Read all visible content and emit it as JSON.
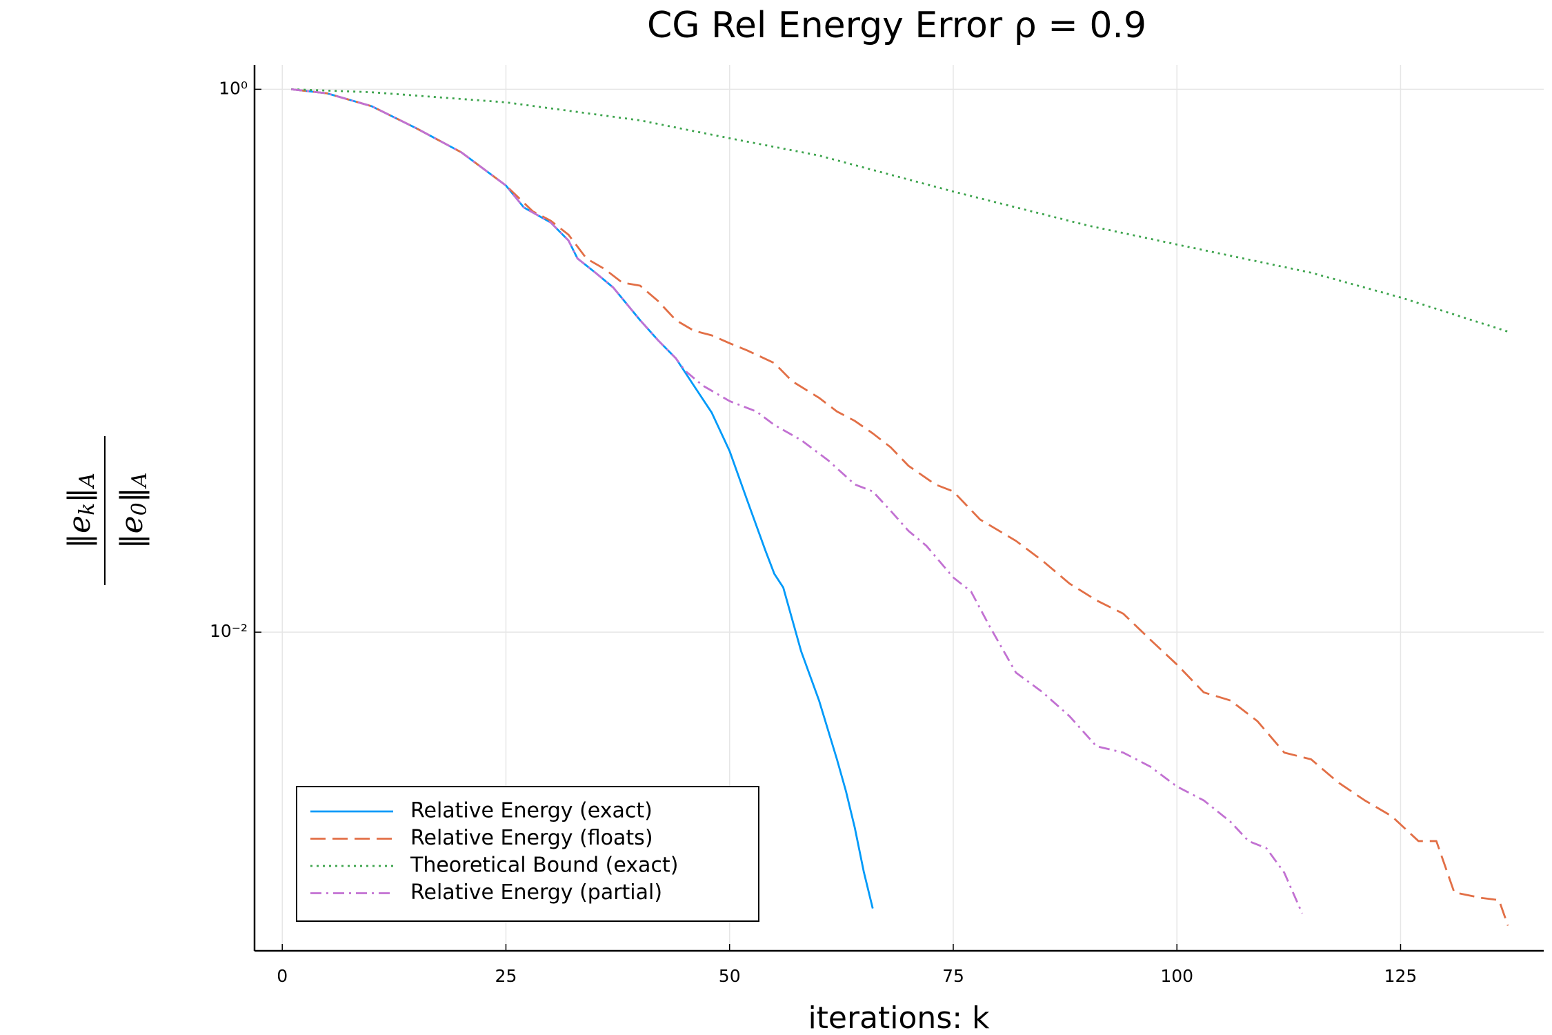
{
  "chart_data": {
    "type": "line",
    "title": "CG Rel Energy Error ρ = 0.9",
    "xlabel": "iterations: k",
    "ylabel": {
      "numerator": [
        "‖e",
        "k",
        "‖",
        "A"
      ],
      "denominator": [
        "‖e",
        "0",
        "‖",
        "A"
      ]
    },
    "xlim": [
      -3.1,
      141
    ],
    "xticks": [
      0,
      25,
      50,
      75,
      100,
      125
    ],
    "ylim": [
      0.00067,
      1.23
    ],
    "log_y": true,
    "yticks": [
      {
        "value": 1,
        "label": "10⁰"
      },
      {
        "value": 0.01,
        "label": "10⁻²"
      }
    ],
    "grid": true,
    "legend": "bottom-left",
    "series": [
      {
        "name": "Relative Energy (exact)",
        "color": "#009af9",
        "dash": "solid",
        "x": [
          1,
          5,
          10,
          15,
          20,
          25,
          27,
          30,
          32,
          33,
          35,
          37,
          40,
          42,
          44,
          46,
          48,
          50,
          52,
          54,
          55,
          56,
          58,
          60,
          62,
          63,
          64,
          65,
          66
        ],
        "values": [
          1,
          0.966,
          0.866,
          0.718,
          0.586,
          0.442,
          0.367,
          0.323,
          0.277,
          0.238,
          0.211,
          0.186,
          0.141,
          0.119,
          0.102,
          0.081,
          0.0644,
          0.0465,
          0.0304,
          0.02,
          0.0164,
          0.0146,
          0.0085,
          0.0056,
          0.0034,
          0.0026,
          0.0019,
          0.00131,
          0.00096
        ]
      },
      {
        "name": "Relative Energy (floats)",
        "color": "#e26f46",
        "dash": "dashed",
        "x": [
          1,
          5,
          10,
          15,
          20,
          25,
          28,
          30,
          32,
          34,
          36,
          38,
          40,
          42,
          44,
          46,
          48,
          50,
          52,
          55,
          57,
          60,
          62,
          64,
          66,
          68,
          70,
          73,
          75,
          78,
          82,
          85,
          88,
          91,
          94,
          97,
          100,
          103,
          106,
          109,
          112,
          115,
          118,
          121,
          124,
          127,
          129,
          131,
          134,
          136,
          137
        ],
        "values": [
          1,
          0.966,
          0.866,
          0.718,
          0.586,
          0.442,
          0.355,
          0.328,
          0.291,
          0.238,
          0.218,
          0.194,
          0.189,
          0.166,
          0.141,
          0.129,
          0.124,
          0.116,
          0.109,
          0.098,
          0.084,
          0.073,
          0.065,
          0.06,
          0.054,
          0.048,
          0.041,
          0.035,
          0.033,
          0.026,
          0.0217,
          0.0183,
          0.0151,
          0.0131,
          0.0117,
          0.0094,
          0.0076,
          0.006,
          0.0056,
          0.0047,
          0.0036,
          0.0034,
          0.0028,
          0.0024,
          0.0021,
          0.0017,
          0.0017,
          0.0011,
          0.00105,
          0.00103,
          0.00083
        ]
      },
      {
        "name": "Theoretical Bound (exact)",
        "color": "#3da44d",
        "dash": "dotted",
        "x": [
          1,
          10,
          25,
          40,
          50,
          60,
          75,
          90,
          100,
          115,
          125,
          137
        ],
        "values": [
          1,
          0.975,
          0.895,
          0.768,
          0.66,
          0.57,
          0.42,
          0.315,
          0.268,
          0.211,
          0.171,
          0.128
        ]
      },
      {
        "name": "Relative Energy (partial)",
        "color": "#c271d2",
        "dash": "dashdot",
        "x": [
          1,
          5,
          10,
          15,
          20,
          25,
          27,
          30,
          32,
          33,
          35,
          37,
          40,
          42,
          44,
          45,
          47,
          50,
          53,
          55,
          58,
          61,
          64,
          66,
          68,
          70,
          72,
          75,
          77,
          79,
          82,
          85,
          88,
          91,
          94,
          97,
          100,
          103,
          106,
          108,
          110,
          112,
          114
        ],
        "values": [
          1,
          0.966,
          0.866,
          0.718,
          0.586,
          0.442,
          0.367,
          0.323,
          0.277,
          0.238,
          0.211,
          0.186,
          0.141,
          0.119,
          0.102,
          0.092,
          0.081,
          0.071,
          0.065,
          0.058,
          0.051,
          0.043,
          0.035,
          0.033,
          0.028,
          0.0236,
          0.0208,
          0.0159,
          0.0141,
          0.0106,
          0.0071,
          0.006,
          0.0049,
          0.0038,
          0.0036,
          0.0032,
          0.0027,
          0.0024,
          0.002,
          0.0017,
          0.0016,
          0.0013,
          0.00092
        ]
      }
    ]
  }
}
